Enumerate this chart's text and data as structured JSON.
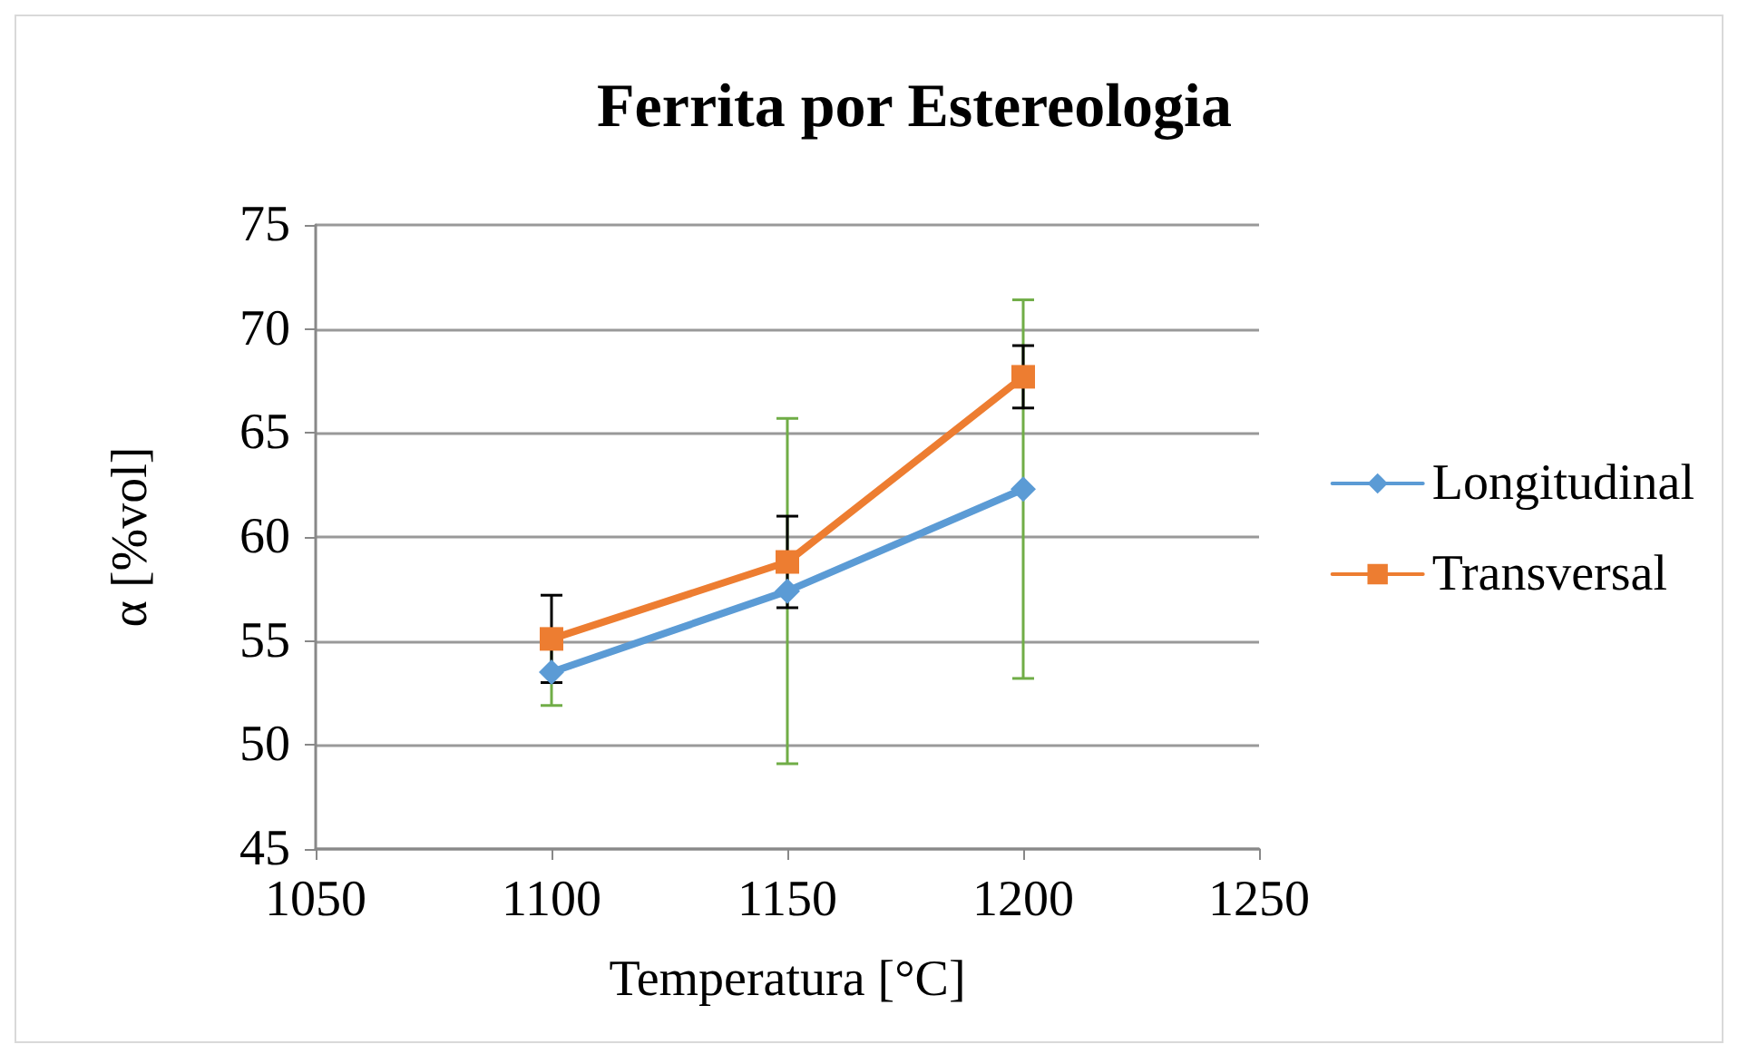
{
  "chart_data": {
    "type": "line",
    "title": "Ferrita por Estereologia",
    "xlabel": "Temperatura [°C]",
    "ylabel": "α [%vol]",
    "x": [
      1100,
      1150,
      1200
    ],
    "series": [
      {
        "name": "Longitudinal",
        "color": "#5b9bd5",
        "marker": "diamond",
        "values": [
          53.5,
          57.4,
          62.3
        ],
        "errors": [
          1.6,
          8.3,
          9.1
        ]
      },
      {
        "name": "Transversal",
        "color": "#ed7d31",
        "marker": "square",
        "values": [
          55.1,
          58.8,
          67.7
        ],
        "errors": [
          2.1,
          2.2,
          1.5
        ]
      }
    ],
    "xlim": [
      1050,
      1250
    ],
    "xticks": [
      1050,
      1100,
      1150,
      1200,
      1250
    ],
    "ylim": [
      45,
      75
    ],
    "yticks": [
      45,
      50,
      55,
      60,
      65,
      70,
      75
    ],
    "grid": "y",
    "legend": "right",
    "line_style": "solid"
  }
}
